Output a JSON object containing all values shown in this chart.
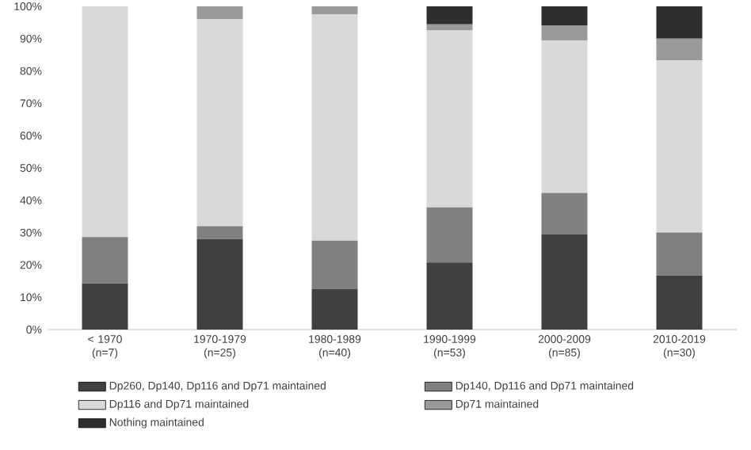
{
  "chart_data": {
    "type": "bar",
    "stacked": true,
    "categories": [
      "< 1970 (n=7)",
      "1970-1979 (n=25)",
      "1980-1989 (n=40)",
      "1990-1999 (n=53)",
      "2000-2009 (n=85)",
      "2010-2019 (n=30)"
    ],
    "series": [
      {
        "name": "Dp260, Dp140, Dp116 and Dp71 maintained",
        "color": "#404040",
        "values": [
          14.3,
          28,
          12.5,
          20.8,
          29.4,
          16.7
        ]
      },
      {
        "name": "Dp140, Dp116 and Dp71 maintained",
        "color": "#808080",
        "values": [
          14.3,
          4,
          15,
          17.0,
          12.9,
          13.3
        ]
      },
      {
        "name": "Dp116 and Dp71 maintained",
        "color": "#d9d9d9",
        "values": [
          71.4,
          64,
          70,
          54.7,
          47.1,
          53.3
        ]
      },
      {
        "name": "Dp71 maintained",
        "color": "#9a9a9a",
        "values": [
          0,
          4,
          2.5,
          1.9,
          4.7,
          6.7
        ]
      },
      {
        "name": "Nothing maintained",
        "color": "#2e2e2e",
        "values": [
          0,
          0,
          0,
          5.7,
          5.9,
          10
        ]
      }
    ],
    "ylim": [
      0,
      100
    ],
    "yticks": [
      {
        "value": 0,
        "label": "0%"
      },
      {
        "value": 10,
        "label": "10%"
      },
      {
        "value": 20,
        "label": "20%"
      },
      {
        "value": 30,
        "label": "30%"
      },
      {
        "value": 40,
        "label": "40%"
      },
      {
        "value": 50,
        "label": "50%"
      },
      {
        "value": 60,
        "label": "60%"
      },
      {
        "value": 70,
        "label": "70%"
      },
      {
        "value": 80,
        "label": "80%"
      },
      {
        "value": 90,
        "label": "90%"
      },
      {
        "value": 100,
        "label": "100%"
      }
    ],
    "legend": "bottom"
  }
}
